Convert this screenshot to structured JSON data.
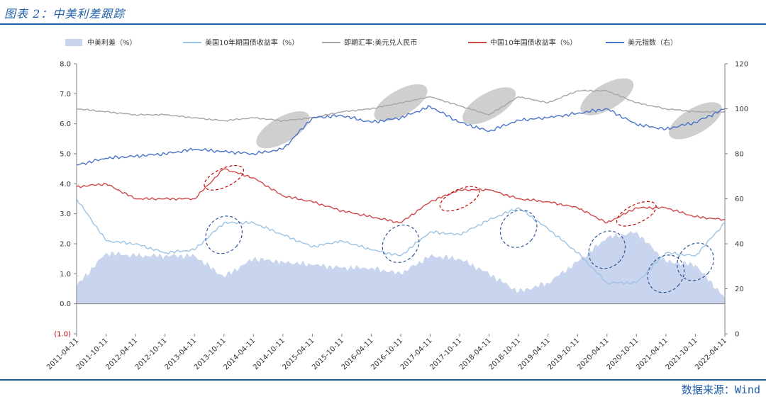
{
  "title": "图表 2：中美利差跟踪",
  "source": "数据来源：Wind",
  "colors": {
    "spread": "#c9d5ee",
    "us10y": "#9cc3e4",
    "usdcny": "#a6a6a6",
    "cn10y": "#d0484b",
    "dxy": "#4a74c9",
    "accent": "#1f5fa8"
  },
  "chart_data": {
    "type": "line",
    "x": [
      "2011-04-11",
      "2011-10-11",
      "2012-04-11",
      "2012-10-11",
      "2013-04-11",
      "2013-10-11",
      "2014-04-11",
      "2014-10-11",
      "2015-04-11",
      "2015-10-11",
      "2016-04-11",
      "2016-10-11",
      "2017-04-11",
      "2017-10-11",
      "2018-04-11",
      "2018-10-11",
      "2019-04-11",
      "2019-10-11",
      "2020-04-11",
      "2020-10-11",
      "2021-04-11",
      "2021-10-11",
      "2022-04-11"
    ],
    "y_left": {
      "ylim": [
        -1.0,
        8.0
      ],
      "ticks": [
        "(1.0)",
        "0.0",
        "1.0",
        "2.0",
        "3.0",
        "4.0",
        "5.0",
        "6.0",
        "7.0",
        "8.0"
      ]
    },
    "y_right": {
      "ylim": [
        0,
        120
      ],
      "ticks": [
        "0",
        "20",
        "40",
        "60",
        "80",
        "100",
        "120"
      ]
    },
    "series": [
      {
        "name": "中美利差（%）",
        "type": "area",
        "axis": "left",
        "values": [
          0.6,
          1.7,
          1.6,
          1.6,
          1.6,
          0.9,
          1.5,
          1.4,
          1.3,
          1.2,
          1.2,
          1.0,
          1.6,
          1.5,
          1.0,
          0.4,
          0.7,
          1.4,
          2.2,
          2.4,
          1.4,
          1.3,
          0.2
        ]
      },
      {
        "name": "美国10年期国债收益率（%）",
        "type": "line",
        "axis": "left",
        "values": [
          3.5,
          2.1,
          2.0,
          1.7,
          1.8,
          2.7,
          2.7,
          2.3,
          1.9,
          2.1,
          1.8,
          1.6,
          2.4,
          2.3,
          2.8,
          3.2,
          2.5,
          1.7,
          0.7,
          0.7,
          1.7,
          1.6,
          2.7
        ]
      },
      {
        "name": "即期汇率:美元兑人民币",
        "type": "line",
        "axis": "left",
        "values": [
          6.5,
          6.4,
          6.3,
          6.3,
          6.2,
          6.1,
          6.2,
          6.1,
          6.2,
          6.4,
          6.5,
          6.7,
          6.9,
          6.6,
          6.3,
          6.9,
          6.7,
          7.1,
          7.1,
          6.7,
          6.5,
          6.4,
          6.4
        ]
      },
      {
        "name": "中国10年国债收益率（%）",
        "type": "line",
        "axis": "left",
        "values": [
          3.9,
          4.0,
          3.5,
          3.5,
          3.5,
          4.5,
          4.2,
          3.6,
          3.4,
          3.1,
          2.9,
          2.7,
          3.4,
          3.8,
          3.8,
          3.5,
          3.4,
          3.2,
          2.7,
          3.2,
          3.2,
          2.9,
          2.8
        ]
      },
      {
        "name": "美元指数（右）",
        "type": "line",
        "axis": "right",
        "values": [
          75,
          78,
          79,
          80,
          82,
          81,
          80,
          82,
          96,
          97,
          94,
          96,
          101,
          94,
          90,
          95,
          96,
          98,
          100,
          93,
          91,
          94,
          100
        ]
      }
    ],
    "annotations": [
      {
        "style": "gray-ellipse",
        "x": "2014-10-11",
        "axis": "left",
        "y": 5.8
      },
      {
        "style": "gray-ellipse",
        "x": "2016-10-11",
        "axis": "left",
        "y": 6.7
      },
      {
        "style": "gray-ellipse",
        "x": "2018-04-11",
        "axis": "left",
        "y": 6.6
      },
      {
        "style": "gray-ellipse",
        "x": "2020-04-11",
        "axis": "left",
        "y": 6.9
      },
      {
        "style": "gray-ellipse",
        "x": "2021-10-11",
        "axis": "left",
        "y": 6.1
      },
      {
        "style": "red-dashed-ellipse",
        "x": "2013-10-11",
        "axis": "left",
        "y": 4.2
      },
      {
        "style": "red-dashed-ellipse",
        "x": "2017-10-11",
        "axis": "left",
        "y": 3.5
      },
      {
        "style": "red-dashed-ellipse",
        "x": "2020-10-11",
        "axis": "left",
        "y": 3.0
      },
      {
        "style": "blue-dashed-ellipse",
        "x": "2013-10-11",
        "axis": "left",
        "y": 2.3
      },
      {
        "style": "blue-dashed-ellipse",
        "x": "2016-10-11",
        "axis": "left",
        "y": 2.0
      },
      {
        "style": "blue-dashed-ellipse",
        "x": "2018-10-11",
        "axis": "left",
        "y": 2.5
      },
      {
        "style": "blue-dashed-ellipse",
        "x": "2020-04-11",
        "axis": "left",
        "y": 1.8
      },
      {
        "style": "blue-dashed-ellipse",
        "x": "2021-04-11",
        "axis": "left",
        "y": 1.0
      },
      {
        "style": "blue-dashed-ellipse",
        "x": "2021-10-11",
        "axis": "left",
        "y": 1.4
      }
    ],
    "grid": false,
    "legend_position": "top"
  }
}
